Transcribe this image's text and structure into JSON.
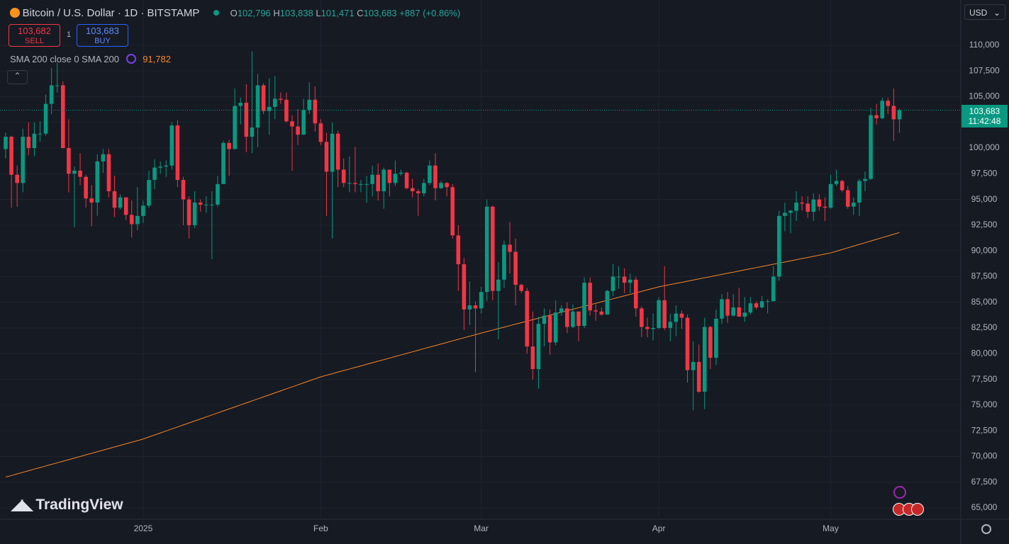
{
  "header": {
    "title": "Bitcoin / U.S. Dollar · 1D · BITSTAMP",
    "o_label": "O",
    "o": "102,796",
    "h_label": "H",
    "h": "103,838",
    "l_label": "L",
    "l": "101,471",
    "c_label": "C",
    "c": "103,683",
    "change": "+887 (+0.86%)"
  },
  "trade": {
    "sell_price": "103,682",
    "sell": "SELL",
    "spread": "1",
    "buy_price": "103,683",
    "buy": "BUY"
  },
  "indicator": {
    "label": "SMA 200 close 0 SMA 200",
    "value": "91,782"
  },
  "price_tag": {
    "price": "103,683",
    "countdown": "11:42:48"
  },
  "currency": "USD",
  "watermark": "TradingView",
  "chart_data": {
    "type": "candlestick",
    "up_color": "#089981",
    "down_color": "#f23645",
    "grid": true,
    "ylim": [
      63900,
      114400
    ],
    "yticks": [
      {
        "value": 65000,
        "label": "65,000"
      },
      {
        "value": 67500,
        "label": "67,500"
      },
      {
        "value": 70000,
        "label": "70,000"
      },
      {
        "value": 72500,
        "label": "72,500"
      },
      {
        "value": 75000,
        "label": "75,000"
      },
      {
        "value": 77500,
        "label": "77,500"
      },
      {
        "value": 80000,
        "label": "80,000"
      },
      {
        "value": 82500,
        "label": "82,500"
      },
      {
        "value": 85000,
        "label": "85,000"
      },
      {
        "value": 87500,
        "label": "87,500"
      },
      {
        "value": 90000,
        "label": "90,000"
      },
      {
        "value": 92500,
        "label": "92,500"
      },
      {
        "value": 95000,
        "label": "95,000"
      },
      {
        "value": 97500,
        "label": "97,500"
      },
      {
        "value": 100000,
        "label": "100,000"
      },
      {
        "value": 102500,
        "label": "102,500"
      },
      {
        "value": 105000,
        "label": "105,000"
      },
      {
        "value": 107500,
        "label": "107,500"
      },
      {
        "value": 110000,
        "label": "110,000"
      }
    ],
    "categories": [
      null,
      null,
      null,
      null,
      null,
      null,
      null,
      null,
      null,
      null,
      null,
      null,
      null,
      null,
      null,
      null,
      null,
      null,
      null,
      null,
      null,
      null,
      null,
      null,
      "2025",
      null,
      null,
      null,
      null,
      null,
      null,
      null,
      null,
      null,
      null,
      null,
      null,
      null,
      null,
      null,
      null,
      null,
      null,
      null,
      null,
      null,
      null,
      null,
      null,
      null,
      null,
      null,
      null,
      null,
      null,
      "Feb",
      null,
      null,
      null,
      null,
      null,
      null,
      null,
      null,
      null,
      null,
      null,
      null,
      null,
      null,
      null,
      null,
      null,
      null,
      null,
      null,
      null,
      null,
      null,
      null,
      null,
      null,
      null,
      "Mar",
      null,
      null,
      null,
      null,
      null,
      null,
      null,
      null,
      null,
      null,
      null,
      null,
      null,
      null,
      null,
      null,
      null,
      null,
      null,
      null,
      null,
      null,
      null,
      null,
      null,
      null,
      null,
      null,
      null,
      null,
      "Apr",
      null,
      null,
      null,
      null,
      null,
      null,
      null,
      null,
      null,
      null,
      null,
      null,
      null,
      null,
      null,
      null,
      null,
      null,
      null,
      null,
      null,
      null,
      null,
      null,
      null,
      null,
      null,
      null,
      null,
      "May",
      null,
      null,
      null,
      null,
      null,
      null,
      null,
      null,
      null,
      null,
      null,
      null
    ],
    "open": [
      99900,
      101100,
      97400,
      96600,
      101100,
      100000,
      101400,
      101400,
      104300,
      106100,
      106100,
      100000,
      97500,
      97800,
      97200,
      95100,
      94700,
      98700,
      99400,
      95800,
      94200,
      95200,
      93500,
      92600,
      93400,
      94400,
      96900,
      98100,
      98200,
      98300,
      102200,
      96900,
      95000,
      92500,
      94700,
      94500,
      94500,
      94500,
      96500,
      100500,
      99900,
      104100,
      104400,
      101100,
      102000,
      106100,
      103600,
      104000,
      104800,
      104700,
      102600,
      102100,
      101300,
      103700,
      104700,
      102400,
      100600,
      97700,
      101400,
      97900,
      96600,
      96600,
      96500,
      96500,
      96500,
      97400,
      95800,
      97900,
      96600,
      97500,
      97600,
      96100,
      95800,
      95600,
      96600,
      98300,
      96100,
      96600,
      96200,
      91500,
      88700,
      84300,
      84700,
      84400,
      86000,
      94300,
      86100,
      87200,
      90600,
      89900,
      86700,
      86100,
      80700,
      78500,
      82900,
      83700,
      81100,
      84000,
      84400,
      82600,
      84100,
      82700,
      86900,
      84200,
      84100,
      83800,
      86100,
      87500,
      87500,
      86900,
      87200,
      84400,
      82600,
      82400,
      82500,
      85200,
      82500,
      83100,
      83900,
      83500,
      78400,
      79200,
      76300,
      82600,
      79600,
      83400,
      85300,
      83700,
      84500,
      83600,
      84000,
      84900,
      84500,
      85100,
      85100,
      87500,
      93400,
      93700,
      93900,
      94700,
      94600,
      93800,
      95000,
      94300,
      94200,
      96500,
      96800,
      95900,
      94300,
      94700,
      96800,
      97000,
      103200,
      102900,
      104600,
      104100,
      102796
    ],
    "high": [
      101500,
      101200,
      98300,
      101900,
      102500,
      102500,
      102600,
      105200,
      107800,
      108300,
      106500,
      102800,
      98200,
      99500,
      97400,
      96400,
      99400,
      99900,
      99900,
      97300,
      95500,
      95200,
      94900,
      96200,
      94900,
      97800,
      98900,
      98700,
      98800,
      102500,
      102700,
      97200,
      95300,
      95800,
      95000,
      95300,
      95800,
      97300,
      100700,
      100800,
      105800,
      104900,
      106200,
      109400,
      107200,
      106300,
      106800,
      107000,
      105400,
      105400,
      103200,
      103800,
      104800,
      106400,
      106000,
      102800,
      101500,
      102500,
      101700,
      99000,
      99200,
      100100,
      96900,
      97300,
      98300,
      98500,
      98100,
      97900,
      98800,
      97900,
      97700,
      97000,
      96000,
      97000,
      98800,
      99500,
      96800,
      96700,
      96500,
      92500,
      89300,
      87000,
      85100,
      86500,
      95000,
      94400,
      88900,
      91000,
      92800,
      91200,
      86800,
      86400,
      84100,
      83600,
      84400,
      84300,
      85200,
      84700,
      85000,
      84800,
      84100,
      87400,
      87400,
      84800,
      84500,
      86200,
      88700,
      88500,
      88300,
      87800,
      87500,
      84600,
      83500,
      83900,
      85500,
      88500,
      83900,
      84700,
      84200,
      83800,
      81200,
      80900,
      83500,
      82700,
      84300,
      85800,
      86000,
      85800,
      86400,
      85500,
      85500,
      85100,
      85600,
      85300,
      88500,
      93900,
      94700,
      94000,
      95800,
      95300,
      95300,
      95600,
      95500,
      95200,
      97400,
      97900,
      96900,
      96300,
      95200,
      97000,
      97700,
      103900,
      104300,
      104900,
      104900,
      105800,
      103838
    ],
    "low": [
      99000,
      94200,
      94300,
      95700,
      99300,
      99200,
      100600,
      101200,
      103300,
      105400,
      100000,
      95700,
      92300,
      96400,
      94200,
      92400,
      93400,
      97600,
      95200,
      93300,
      94000,
      93000,
      91300,
      92000,
      92700,
      94200,
      96000,
      97500,
      97200,
      97900,
      96200,
      92500,
      91200,
      92200,
      93800,
      93700,
      89200,
      94300,
      96500,
      97300,
      99900,
      102300,
      99600,
      99500,
      100100,
      103300,
      101300,
      102800,
      104300,
      102500,
      97800,
      100300,
      101300,
      103300,
      101600,
      100300,
      93400,
      91200,
      96200,
      96200,
      95700,
      95700,
      95700,
      94700,
      95300,
      94900,
      94100,
      95300,
      96300,
      97300,
      96000,
      95200,
      93400,
      95300,
      96400,
      94900,
      96000,
      95300,
      91200,
      86100,
      82300,
      82800,
      78200,
      83900,
      85100,
      85200,
      81400,
      86400,
      87800,
      84700,
      85900,
      80000,
      77500,
      76600,
      80700,
      79900,
      80800,
      83700,
      82000,
      82500,
      81200,
      82500,
      83700,
      83200,
      83700,
      83800,
      85600,
      86300,
      85900,
      85900,
      83600,
      81600,
      81600,
      81300,
      82400,
      82300,
      81200,
      81700,
      82400,
      77200,
      74500,
      76200,
      74600,
      78500,
      78900,
      82900,
      83000,
      83600,
      83600,
      83100,
      83800,
      84300,
      84400,
      83900,
      85100,
      87100,
      91900,
      91700,
      92900,
      93900,
      93200,
      92900,
      93900,
      92900,
      94100,
      96300,
      95700,
      94100,
      93500,
      93400,
      95800,
      96900,
      102300,
      102800,
      103300,
      100700,
      101471
    ],
    "close": [
      101100,
      97400,
      96600,
      101100,
      100000,
      101400,
      101400,
      104300,
      106100,
      106100,
      100000,
      97500,
      97800,
      97200,
      95100,
      94700,
      98700,
      99400,
      95800,
      94200,
      95200,
      93500,
      92600,
      93400,
      94400,
      96900,
      98100,
      98200,
      98300,
      102200,
      96900,
      95000,
      92500,
      94700,
      94500,
      94500,
      94500,
      96500,
      100500,
      99900,
      104100,
      104400,
      101100,
      102000,
      106100,
      103600,
      104000,
      104800,
      104700,
      102600,
      102100,
      101300,
      103700,
      104700,
      102400,
      100600,
      97700,
      101400,
      97900,
      96600,
      96600,
      96500,
      96500,
      96500,
      97400,
      95800,
      97900,
      96600,
      97500,
      97600,
      96100,
      95800,
      95600,
      96600,
      98300,
      96100,
      96600,
      96200,
      91500,
      88700,
      84300,
      84700,
      84400,
      86000,
      94300,
      86100,
      87200,
      90600,
      89900,
      86700,
      86100,
      80700,
      78500,
      82900,
      83700,
      81100,
      84000,
      84400,
      82600,
      84100,
      82700,
      86900,
      84200,
      84100,
      83800,
      86100,
      87500,
      87500,
      86900,
      87200,
      84400,
      82600,
      82400,
      82500,
      85200,
      82500,
      83100,
      83900,
      83500,
      78400,
      79200,
      76300,
      82600,
      79600,
      83400,
      85300,
      83700,
      84500,
      83600,
      84000,
      84900,
      84500,
      85100,
      85100,
      87500,
      93400,
      93700,
      93900,
      94700,
      94600,
      93800,
      95000,
      94300,
      94200,
      96500,
      96800,
      95900,
      94300,
      94700,
      96800,
      97000,
      103200,
      102900,
      104600,
      104100,
      102796,
      103683
    ],
    "sma": {
      "color": "#f7862a",
      "values": [
        68000,
        68150,
        68310,
        68460,
        68620,
        68770,
        68920,
        69080,
        69230,
        69390,
        69540,
        69690,
        69850,
        70000,
        70160,
        70310,
        70460,
        70620,
        70770,
        70930,
        71080,
        71240,
        71390,
        71540,
        71700,
        71900,
        72090,
        72290,
        72480,
        72680,
        72870,
        73070,
        73260,
        73460,
        73650,
        73850,
        74040,
        74240,
        74430,
        74630,
        74820,
        75020,
        75210,
        75410,
        75600,
        75800,
        75990,
        76190,
        76380,
        76580,
        76770,
        76970,
        77160,
        77360,
        77550,
        77750,
        77900,
        78050,
        78210,
        78360,
        78510,
        78660,
        78810,
        78970,
        79120,
        79270,
        79420,
        79570,
        79730,
        79880,
        80030,
        80180,
        80330,
        80490,
        80640,
        80790,
        80940,
        81090,
        81250,
        81400,
        81550,
        81700,
        81850,
        82000,
        82150,
        82290,
        82440,
        82580,
        82730,
        82870,
        83020,
        83160,
        83310,
        83450,
        83600,
        83740,
        83890,
        84030,
        84180,
        84320,
        84470,
        84610,
        84760,
        84900,
        85050,
        85190,
        85340,
        85480,
        85630,
        85770,
        85920,
        86060,
        86210,
        86350,
        86500,
        86610,
        86720,
        86830,
        86940,
        87050,
        87160,
        87270,
        87380,
        87490,
        87600,
        87710,
        87820,
        87930,
        88040,
        88150,
        88260,
        88370,
        88480,
        88590,
        88700,
        88810,
        88920,
        89030,
        89140,
        89250,
        89360,
        89470,
        89580,
        89690,
        89800,
        89970,
        90130,
        90300,
        90460,
        90630,
        90790,
        90960,
        91120,
        91290,
        91450,
        91620,
        91782
      ]
    }
  }
}
